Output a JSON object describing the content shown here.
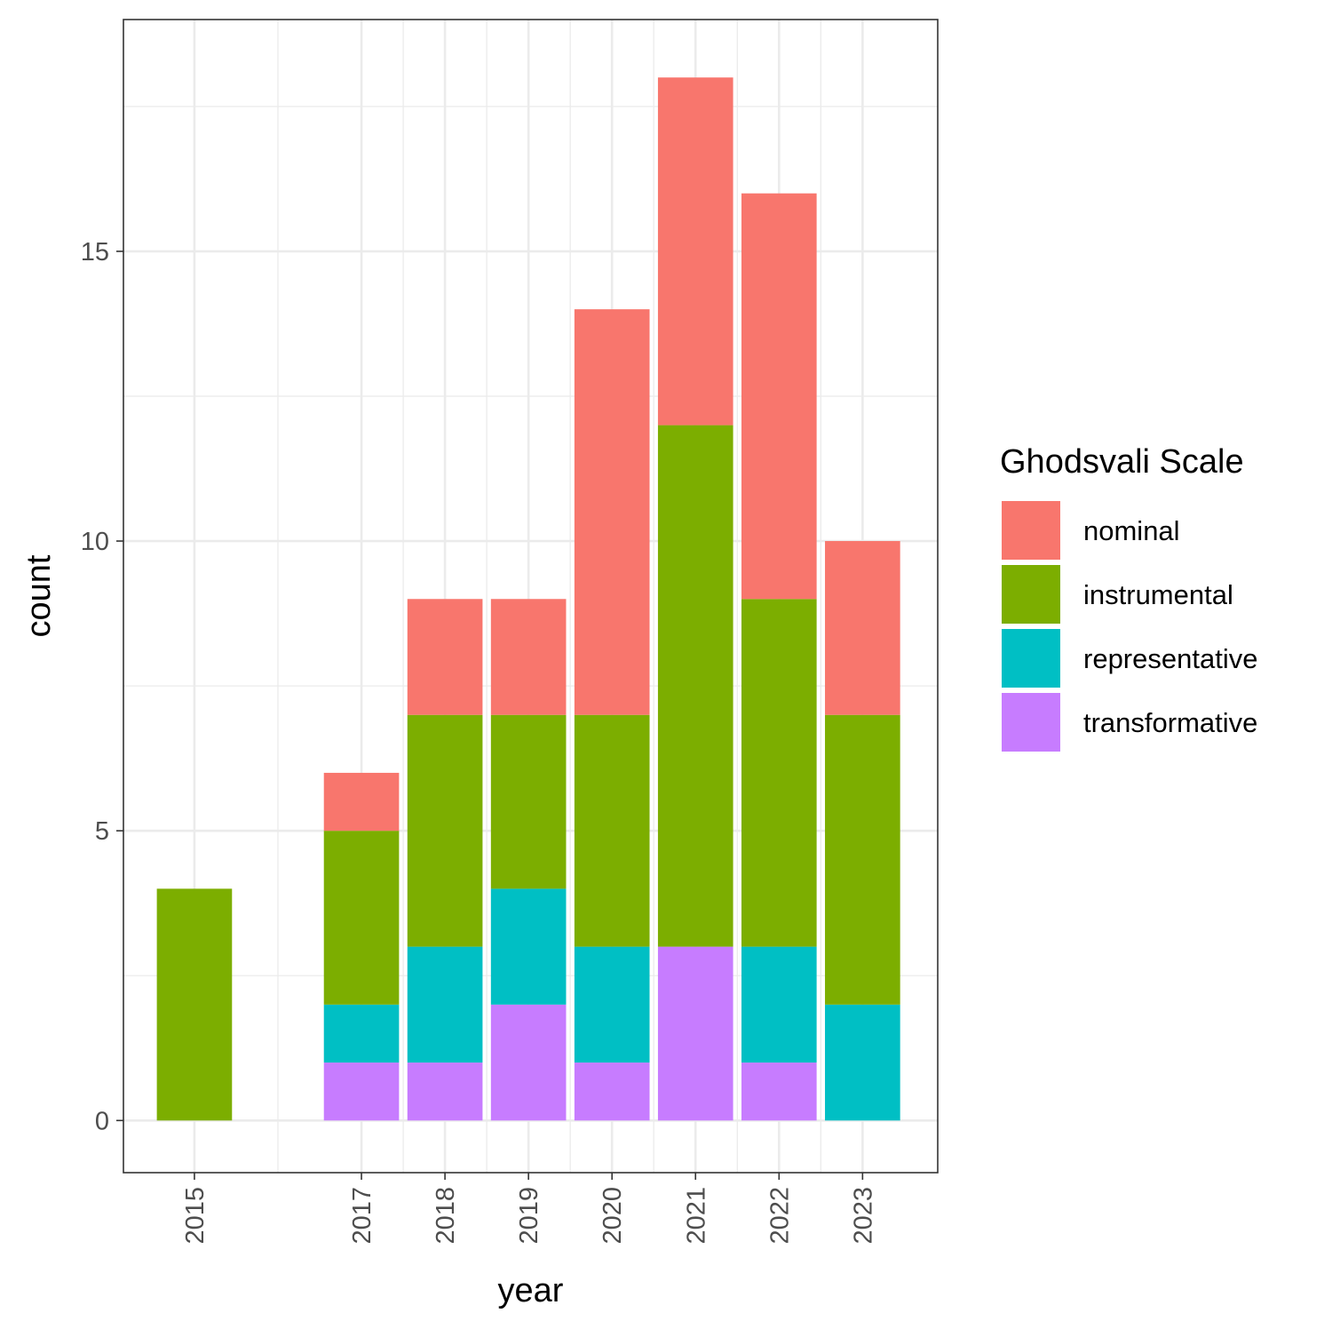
{
  "chart_data": {
    "type": "bar",
    "stacked": true,
    "xlabel": "year",
    "ylabel": "count",
    "x": [
      "2015",
      "2017",
      "2018",
      "2019",
      "2020",
      "2021",
      "2022",
      "2023"
    ],
    "x_numeric": [
      2015,
      2017,
      2018,
      2019,
      2020,
      2021,
      2022,
      2023
    ],
    "xlim": [
      2014.15,
      2023.9
    ],
    "ylim": [
      -0.9,
      19
    ],
    "y_ticks": [
      0,
      5,
      10,
      15
    ],
    "grid": true,
    "legend": {
      "title": "Ghodsvali Scale",
      "placement": "right"
    },
    "series": [
      {
        "name": "nominal",
        "color": "#F8766D",
        "values": [
          0,
          1,
          2,
          2,
          7,
          6,
          7,
          3
        ]
      },
      {
        "name": "instrumental",
        "color": "#7CAE00",
        "values": [
          4,
          3,
          4,
          3,
          4,
          9,
          6,
          5
        ]
      },
      {
        "name": "representative",
        "color": "#00BFC4",
        "values": [
          0,
          1,
          2,
          2,
          2,
          0,
          2,
          2
        ]
      },
      {
        "name": "transformative",
        "color": "#C77CFF",
        "values": [
          0,
          1,
          1,
          2,
          1,
          3,
          1,
          0
        ]
      }
    ]
  }
}
